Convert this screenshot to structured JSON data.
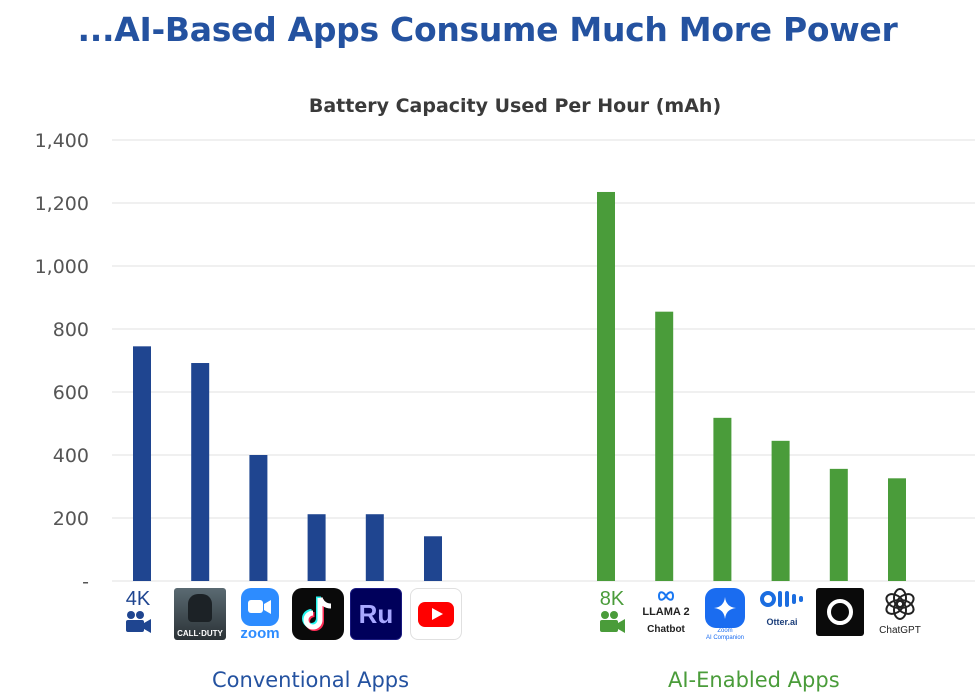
{
  "headline": "...AI-Based Apps Consume Much More Power",
  "colors": {
    "conventional": "#1f4590",
    "ai": "#4a9c3a",
    "headline": "#2452a0"
  },
  "chart_data": {
    "type": "bar",
    "title": "Battery Capacity Used Per Hour (mAh)",
    "xlabel": "",
    "ylabel": "",
    "ylim": [
      0,
      1400
    ],
    "yticks": [
      0,
      200,
      400,
      600,
      800,
      1000,
      1200,
      1400
    ],
    "ytick_labels": [
      "-",
      "200",
      "400",
      "600",
      "800",
      "1,000",
      "1,200",
      "1,400"
    ],
    "grid": true,
    "series": [
      {
        "name": "Conventional Apps",
        "color": "#1f4590",
        "categories": [
          "4K video",
          "Call of Duty",
          "Zoom",
          "TikTok",
          "Adobe Rush",
          "YouTube"
        ],
        "values": [
          745,
          692,
          400,
          212,
          212,
          142
        ]
      },
      {
        "name": "AI-Enabled Apps",
        "color": "#4a9c3a",
        "categories": [
          "8K video",
          "LLAMA 2 Chatbot",
          "Zoom AI Companion",
          "Otter.ai",
          "Circle app",
          "ChatGPT"
        ],
        "values": [
          1235,
          855,
          518,
          445,
          356,
          326
        ]
      }
    ]
  },
  "icons": {
    "video_4k": "4K",
    "cod_text": "CALL·DUTY",
    "zoom_text": "zoom",
    "ru_text": "Ru",
    "video_8k": "8K",
    "llama_top": "LLAMA 2",
    "llama_bottom": "Chatbot",
    "zoom_ai_text": "Zoom\nAI Companion",
    "otter_text": "Otter.ai",
    "chatgpt_text": "ChatGPT"
  }
}
